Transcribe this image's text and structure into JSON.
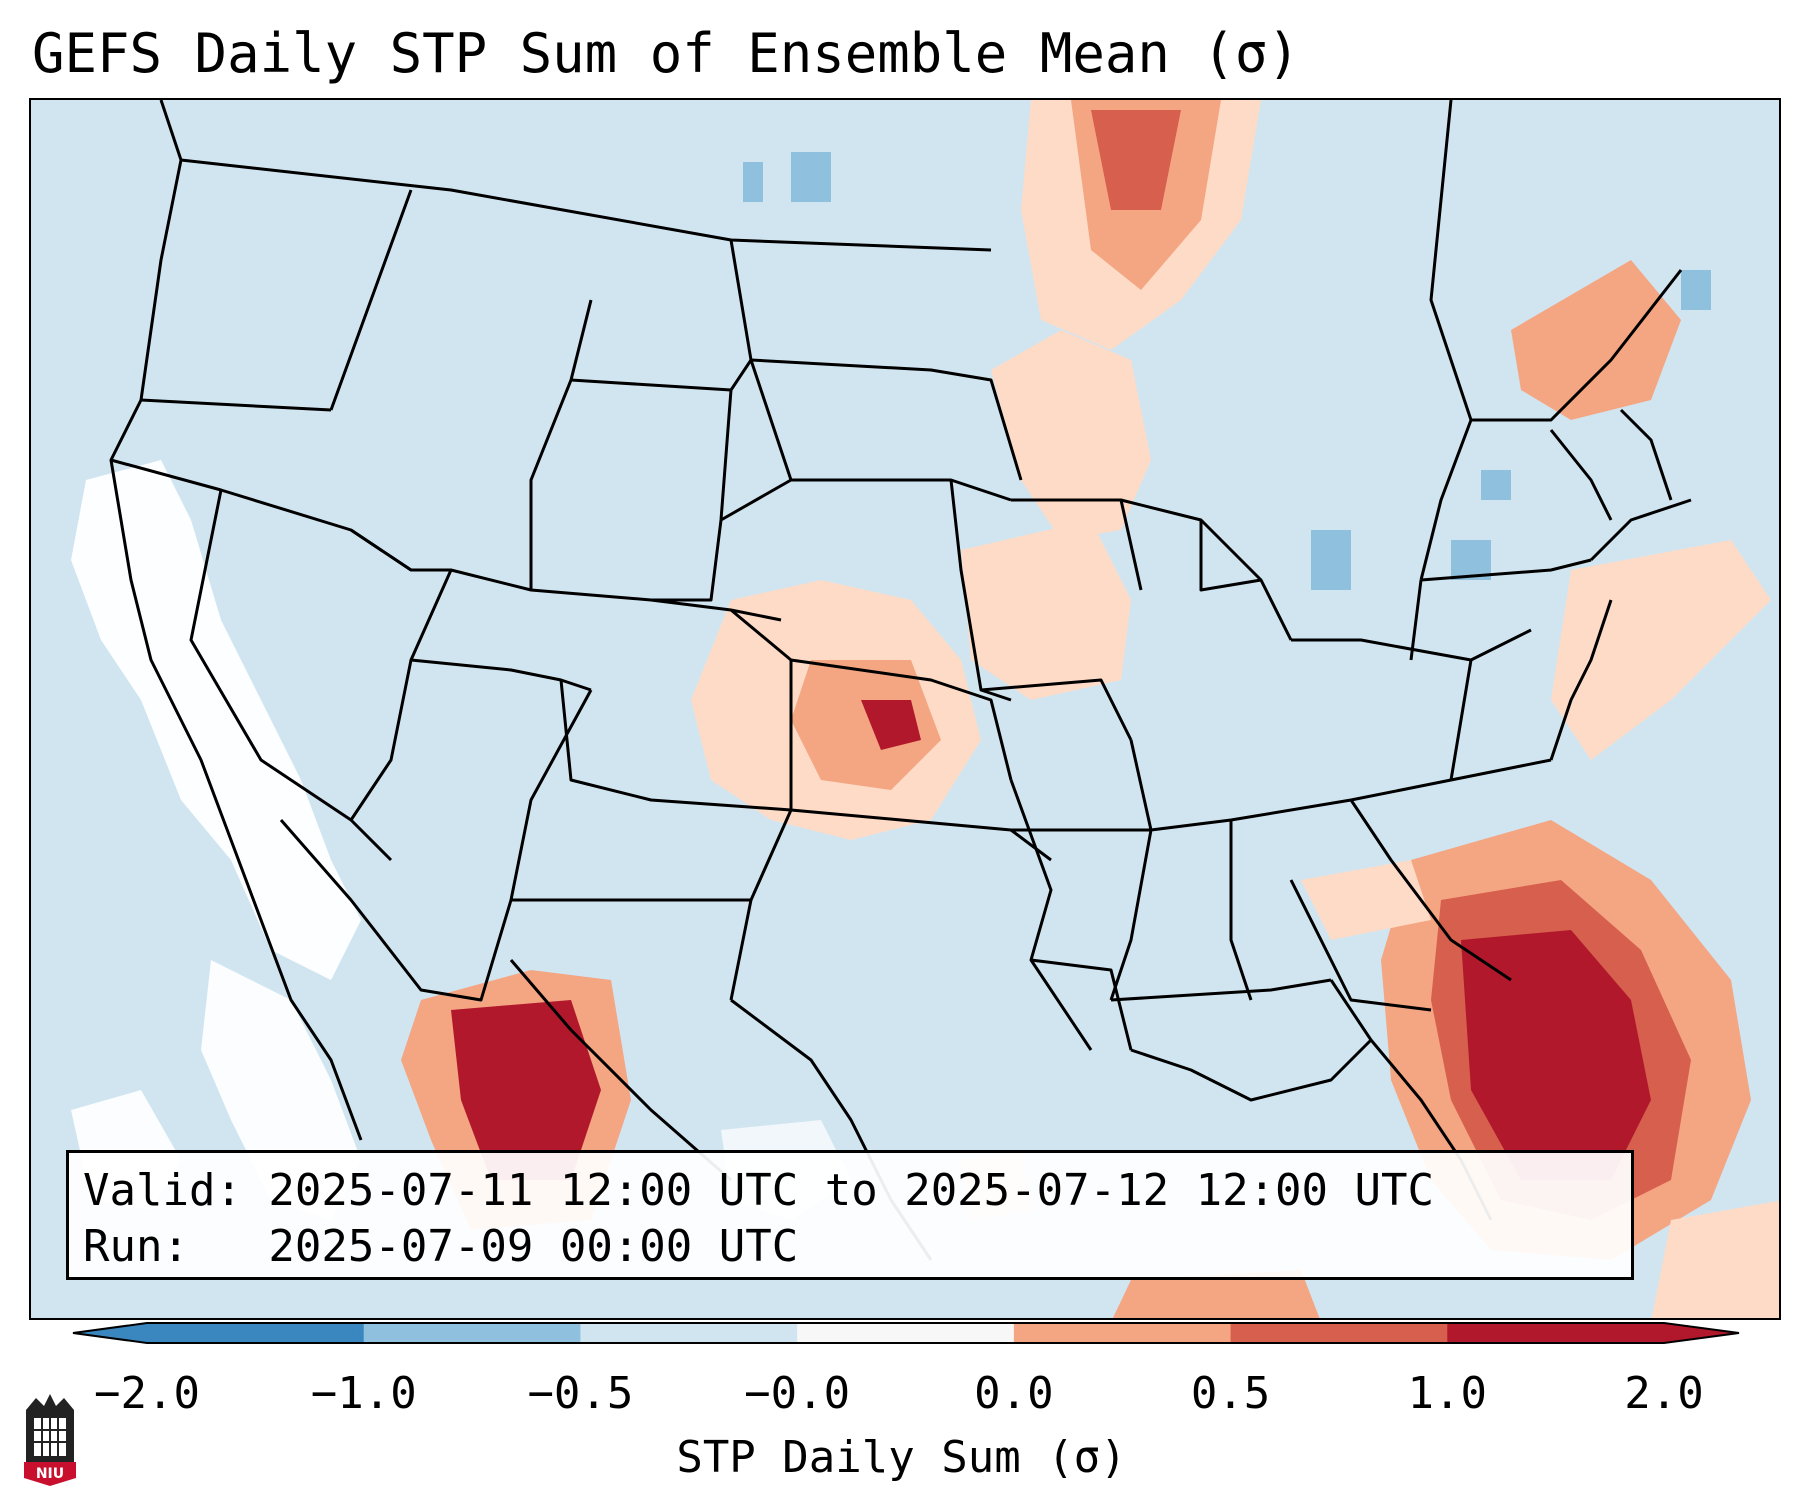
{
  "title": "GEFS Daily STP Sum of Ensemble Mean (σ)",
  "info": {
    "valid": "Valid: 2025-07-11 12:00 UTC to 2025-07-12 12:00 UTC",
    "run": "Run:   2025-07-09 00:00 UTC"
  },
  "colorbar": {
    "label": "STP Daily Sum (σ)",
    "ticks": [
      "−2.0",
      "−1.0",
      "−0.5",
      "−0.0",
      "0.0",
      "0.5",
      "1.0",
      "2.0"
    ],
    "colors": [
      "#3a87c0",
      "#8fc0de",
      "#d1e5f0",
      "#f7f7f7",
      "#fddbc7",
      "#f4a582",
      "#d6604d",
      "#b2182b"
    ],
    "extend": "both"
  },
  "map": {
    "background_color": "#d1e5f0",
    "outside_color": "#ffffff",
    "boundary_color": "#000000",
    "regions": {
      "central_plains": 1.2,
      "upper_midwest": 0.6,
      "northern_mexico": 2.0,
      "florida_southeast": 2.0,
      "northeast": 0.8,
      "west_coast_offshore": -0.2
    }
  },
  "logo": {
    "text": "NIU",
    "icon": "niu-seal-icon"
  }
}
